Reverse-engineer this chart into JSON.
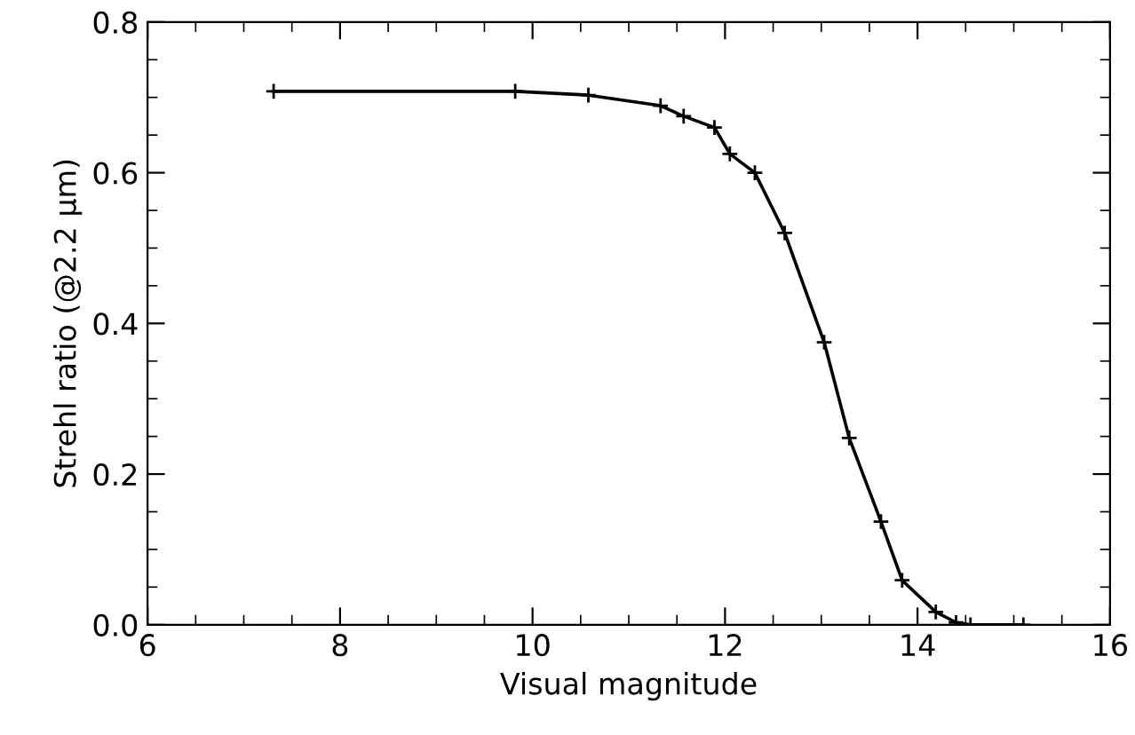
{
  "chart_data": {
    "type": "line",
    "xlabel": "Visual magnitude",
    "ylabel": "Strehl ratio (@2.2 μm)",
    "xlim": [
      6,
      16
    ],
    "ylim": [
      0,
      0.8
    ],
    "xticks": [
      6,
      8,
      10,
      12,
      14,
      16
    ],
    "yticks": [
      {
        "value": 0,
        "label": "0.0"
      },
      {
        "value": 0.2,
        "label": "0.2"
      },
      {
        "value": 0.4,
        "label": "0.4"
      },
      {
        "value": 0.6,
        "label": "0.6"
      },
      {
        "value": 0.8,
        "label": "0.8"
      }
    ],
    "marker": "cross",
    "line_style": "solid",
    "grid": false,
    "series": [
      {
        "color": "#000000",
        "x": [
          7.31,
          9.82,
          10.58,
          11.33,
          11.57,
          11.89,
          12.05,
          12.31,
          12.62,
          13.03,
          13.29,
          13.62,
          13.84,
          14.19,
          14.4,
          14.55,
          15.1
        ],
        "values": [
          0.708,
          0.708,
          0.703,
          0.689,
          0.675,
          0.66,
          0.625,
          0.6,
          0.52,
          0.375,
          0.248,
          0.137,
          0.059,
          0.017,
          0.003,
          0.0,
          0.0
        ]
      }
    ]
  }
}
